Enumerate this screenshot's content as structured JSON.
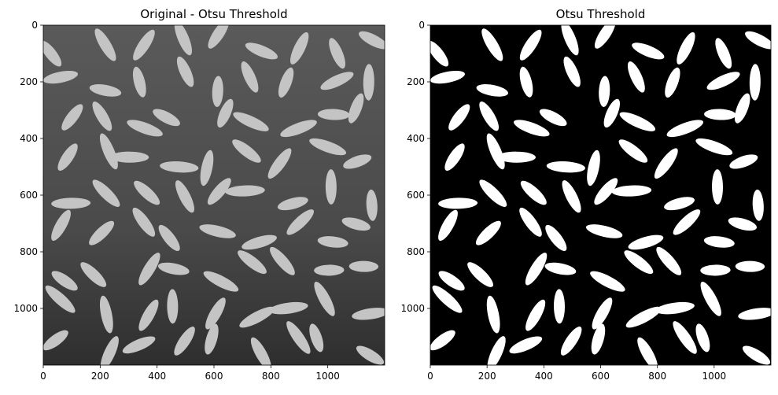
{
  "chart_data": [
    {
      "type": "image",
      "title": "Original - Otsu Threshold",
      "xlim": [
        0,
        1200
      ],
      "ylim": [
        1200,
        0
      ],
      "xticks": [
        0,
        200,
        400,
        600,
        800,
        1000
      ],
      "yticks": [
        0,
        200,
        400,
        600,
        800,
        1000
      ]
    },
    {
      "type": "image",
      "title": "Otsu Threshold",
      "xlim": [
        0,
        1200
      ],
      "ylim": [
        1200,
        0
      ],
      "xticks": [
        0,
        200,
        400,
        600,
        800,
        1000
      ],
      "yticks": [
        0,
        200,
        400,
        600,
        800,
        1000
      ]
    }
  ]
}
